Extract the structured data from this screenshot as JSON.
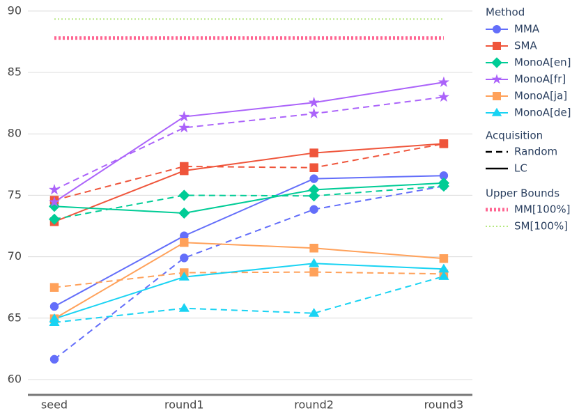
{
  "chart_data": {
    "type": "line",
    "categories": [
      "seed",
      "round1",
      "round2",
      "round3"
    ],
    "ylim": [
      58.75,
      90.9
    ],
    "yticks": [
      60,
      65,
      70,
      75,
      80,
      85,
      90
    ],
    "grid": true,
    "legend_position": "right",
    "method_legend_title": "Method",
    "series": [
      {
        "name": "MMA",
        "color": "#636efa",
        "marker": "circle",
        "values_by_acquisition": [
          [
            61.65,
            69.9,
            73.85,
            75.75
          ],
          [
            65.95,
            71.7,
            76.35,
            76.6
          ]
        ]
      },
      {
        "name": "SMA",
        "color": "#ef553b",
        "marker": "square",
        "values_by_acquisition": [
          [
            74.6,
            77.35,
            77.25,
            79.2
          ],
          [
            72.85,
            77.0,
            78.45,
            79.2
          ]
        ]
      },
      {
        "name": "MonoA[en]",
        "color": "#00cc96",
        "marker": "diamond",
        "values_by_acquisition": [
          [
            73.05,
            75.0,
            74.95,
            75.75
          ],
          [
            74.1,
            73.55,
            75.45,
            76.0
          ]
        ]
      },
      {
        "name": "MonoA[fr]",
        "color": "#ab63fa",
        "marker": "star",
        "values_by_acquisition": [
          [
            75.45,
            80.5,
            81.65,
            83.0
          ],
          [
            74.45,
            81.4,
            82.55,
            84.2
          ]
        ]
      },
      {
        "name": "MonoA[ja]",
        "color": "#ffa15a",
        "marker": "bowtie",
        "values_by_acquisition": [
          [
            67.5,
            68.7,
            68.75,
            68.6
          ],
          [
            64.95,
            71.15,
            70.7,
            69.85
          ]
        ]
      },
      {
        "name": "MonoA[de]",
        "color": "#19d3f3",
        "marker": "triangle",
        "values_by_acquisition": [
          [
            64.65,
            65.8,
            65.4,
            68.4
          ],
          [
            64.95,
            68.35,
            69.45,
            69.0
          ]
        ]
      }
    ],
    "acquisition": {
      "title": "Acquisition",
      "items": [
        {
          "name": "Random",
          "dash": "dashed"
        },
        {
          "name": "LC",
          "dash": "solid"
        }
      ]
    },
    "upper_bounds": {
      "title": "Upper Bounds",
      "items": [
        {
          "name": "MM[100%]",
          "value": 87.8,
          "color": "#ff6692",
          "style": "dotted"
        },
        {
          "name": "SM[100%]",
          "value": 89.35,
          "color": "#b6e880",
          "style": "dotted-thin"
        }
      ]
    }
  }
}
